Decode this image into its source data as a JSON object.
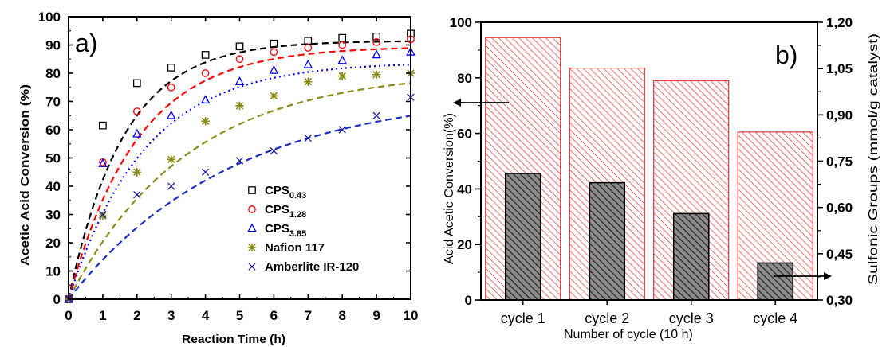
{
  "chart_data": [
    {
      "type": "scatter",
      "panel_label": "a)",
      "xlabel": "Reaction Time (h)",
      "ylabel": "Acetic Acid Conversion (%)",
      "xlim": [
        0,
        10
      ],
      "ylim": [
        0,
        100
      ],
      "x_ticks": [
        "0",
        "1",
        "2",
        "3",
        "4",
        "5",
        "6",
        "7",
        "8",
        "9",
        "10"
      ],
      "y_ticks": [
        "0",
        "10",
        "20",
        "30",
        "40",
        "50",
        "60",
        "70",
        "80",
        "90",
        "100"
      ],
      "legend_position": "bottom-right",
      "grid": false,
      "series": [
        {
          "name": "CPS",
          "subscript": "0.43",
          "marker": "square",
          "color": "#000000",
          "line_color": "#000000",
          "line_style": "dashed",
          "x": [
            0,
            1,
            2,
            3,
            4,
            5,
            6,
            7,
            8,
            9,
            10
          ],
          "y": [
            0,
            61.5,
            76.5,
            82,
            86.5,
            89.5,
            90.5,
            91.5,
            92.5,
            93,
            94
          ],
          "fit": {
            "a": 91.5,
            "k": 0.62
          }
        },
        {
          "name": "CPS",
          "subscript": "1.28",
          "marker": "circle",
          "color": "#ff0000",
          "line_color": "#ff0000",
          "line_style": "dashed",
          "x": [
            0,
            1,
            2,
            3,
            4,
            5,
            6,
            7,
            8,
            9,
            10
          ],
          "y": [
            0,
            48.5,
            66.5,
            75,
            80,
            85,
            87.5,
            89,
            90,
            91,
            92
          ],
          "fit": {
            "a": 89.5,
            "k": 0.5
          }
        },
        {
          "name": "CPS",
          "subscript": "3.85",
          "marker": "triangle",
          "color": "#0000ff",
          "line_color": "#0000ff",
          "line_style": "dotted",
          "x": [
            0,
            1,
            2,
            3,
            4,
            5,
            6,
            7,
            8,
            9,
            10
          ],
          "y": [
            0,
            48,
            58.5,
            65,
            70.5,
            77,
            81,
            83,
            84.5,
            86.5,
            87.5
          ],
          "fit": {
            "a": 84,
            "k": 0.45
          }
        },
        {
          "name": "Nafion 117",
          "subscript": "",
          "marker": "asterisk",
          "color": "#8b8b1a",
          "line_color": "#8b8b1a",
          "line_style": "dashed",
          "x": [
            0,
            1,
            2,
            3,
            4,
            5,
            6,
            7,
            8,
            9,
            10
          ],
          "y": [
            0,
            29.5,
            45,
            49.5,
            63,
            68.5,
            72,
            77,
            79,
            79.5,
            80
          ],
          "fit": {
            "a": 81,
            "k": 0.29
          }
        },
        {
          "name": "Amberlite IR-120",
          "subscript": "",
          "marker": "x",
          "color": "#1a1aa0",
          "line_color": "#1a2ec8",
          "line_style": "dashed",
          "x": [
            0,
            1,
            2,
            3,
            4,
            5,
            6,
            7,
            8,
            9,
            10
          ],
          "y": [
            0,
            30,
            37,
            40,
            45,
            49,
            52.5,
            57,
            60,
            65,
            71.5
          ],
          "fit": {
            "a": 74,
            "k": 0.21
          }
        }
      ]
    },
    {
      "type": "bar",
      "panel_label": "b)",
      "xlabel": "Number of cycle (10 h)",
      "ylabel": "Acid Acetic Conversion(%)",
      "ylabel_right": "Sulfonic Groups (mmol/g catalyst)",
      "categories": [
        "cycle 1",
        "cycle 2",
        "cycle 3",
        "cycle 4"
      ],
      "ylim": [
        0,
        100
      ],
      "ylim_right": [
        0.3,
        1.2
      ],
      "y_ticks": [
        "0",
        "20",
        "40",
        "60",
        "80",
        "100"
      ],
      "y_ticks_right": [
        "0,30",
        "0,45",
        "0,60",
        "0,75",
        "0,90",
        "1,05",
        "1,20"
      ],
      "grid": false,
      "series": [
        {
          "name": "",
          "axis": "left",
          "color": "#e03030",
          "fill": "hatched",
          "values": [
            94.5,
            83.5,
            79,
            60.5
          ]
        },
        {
          "name": "",
          "axis": "right",
          "color": "#1a1a1a",
          "fill": "hatched-dark",
          "values": [
            0.71,
            0.68,
            0.58,
            0.42
          ]
        }
      ]
    }
  ]
}
